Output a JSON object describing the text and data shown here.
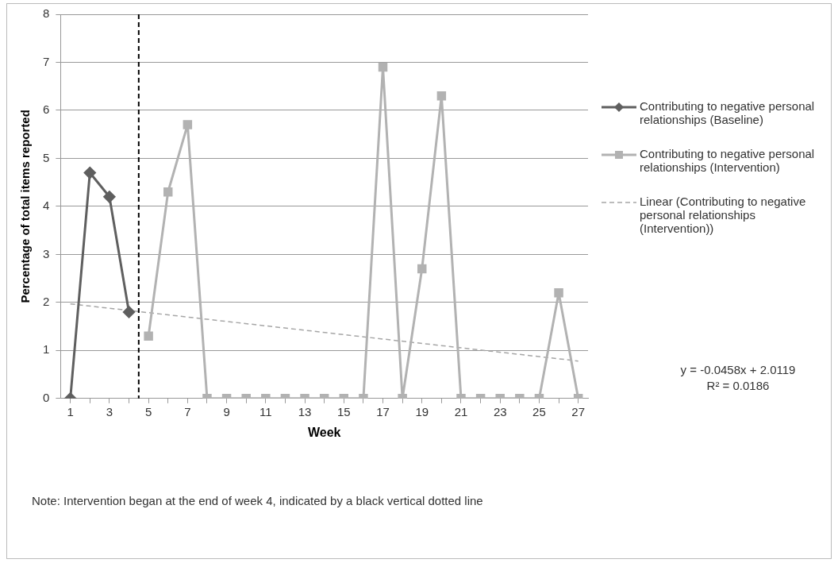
{
  "chart_data": {
    "type": "line",
    "xlabel": "Week",
    "ylabel": "Percentage of total items reported",
    "xlim": [
      0.5,
      27.5
    ],
    "xticks": [
      1,
      {
        "value": 2,
        "label": null
      },
      3,
      {
        "value": 4,
        "label": null
      },
      5,
      {
        "value": 6,
        "label": null
      },
      7,
      {
        "value": 8,
        "label": null
      },
      9,
      {
        "value": 10,
        "label": null
      },
      11,
      {
        "value": 12,
        "label": null
      },
      13,
      {
        "value": 14,
        "label": null
      },
      15,
      {
        "value": 16,
        "label": null
      },
      17,
      {
        "value": 18,
        "label": null
      },
      19,
      {
        "value": 20,
        "label": null
      },
      21,
      {
        "value": 22,
        "label": null
      },
      23,
      {
        "value": 24,
        "label": null
      },
      25,
      {
        "value": 26,
        "label": null
      },
      27
    ],
    "ylim": [
      0,
      8
    ],
    "yticks": [
      0,
      1,
      2,
      3,
      4,
      5,
      6,
      7,
      8
    ],
    "grid": "y",
    "legend": "right",
    "series": [
      {
        "name": "Contributing to negative personal relationships (Baseline)",
        "color": "#5f5f5f",
        "marker": "diamond",
        "x": [
          1,
          2,
          3,
          4
        ],
        "values": [
          0,
          4.7,
          4.2,
          1.8
        ]
      },
      {
        "name": "Contributing to negative personal relationships (Intervention)",
        "color": "#b2b2b2",
        "marker": "square",
        "x": [
          5,
          6,
          7,
          8,
          9,
          10,
          11,
          12,
          13,
          14,
          15,
          16,
          17,
          18,
          19,
          20,
          21,
          22,
          23,
          24,
          25,
          26,
          27
        ],
        "values": [
          1.3,
          4.3,
          5.7,
          0,
          0,
          0,
          0,
          0,
          0,
          0,
          0,
          0,
          6.9,
          0,
          2.7,
          6.3,
          0,
          0,
          0,
          0,
          0,
          2.2,
          0
        ]
      },
      {
        "name": "Linear (Contributing to negative personal relationships (Intervention))",
        "color": "#a6a6a6",
        "marker": "none",
        "line_style": "dashed",
        "x": [
          1,
          27
        ],
        "values": [
          1.97,
          0.78
        ]
      }
    ],
    "ref_lines": [
      {
        "axis": "x",
        "value": 4.5,
        "color": "#000000",
        "line_style": "dashed"
      }
    ],
    "annotations": [
      "y = -0.0458x + 2.0119",
      "R² = 0.0186",
      "Note: Intervention began at the end of week 4, indicated by a black vertical dotted line"
    ]
  }
}
